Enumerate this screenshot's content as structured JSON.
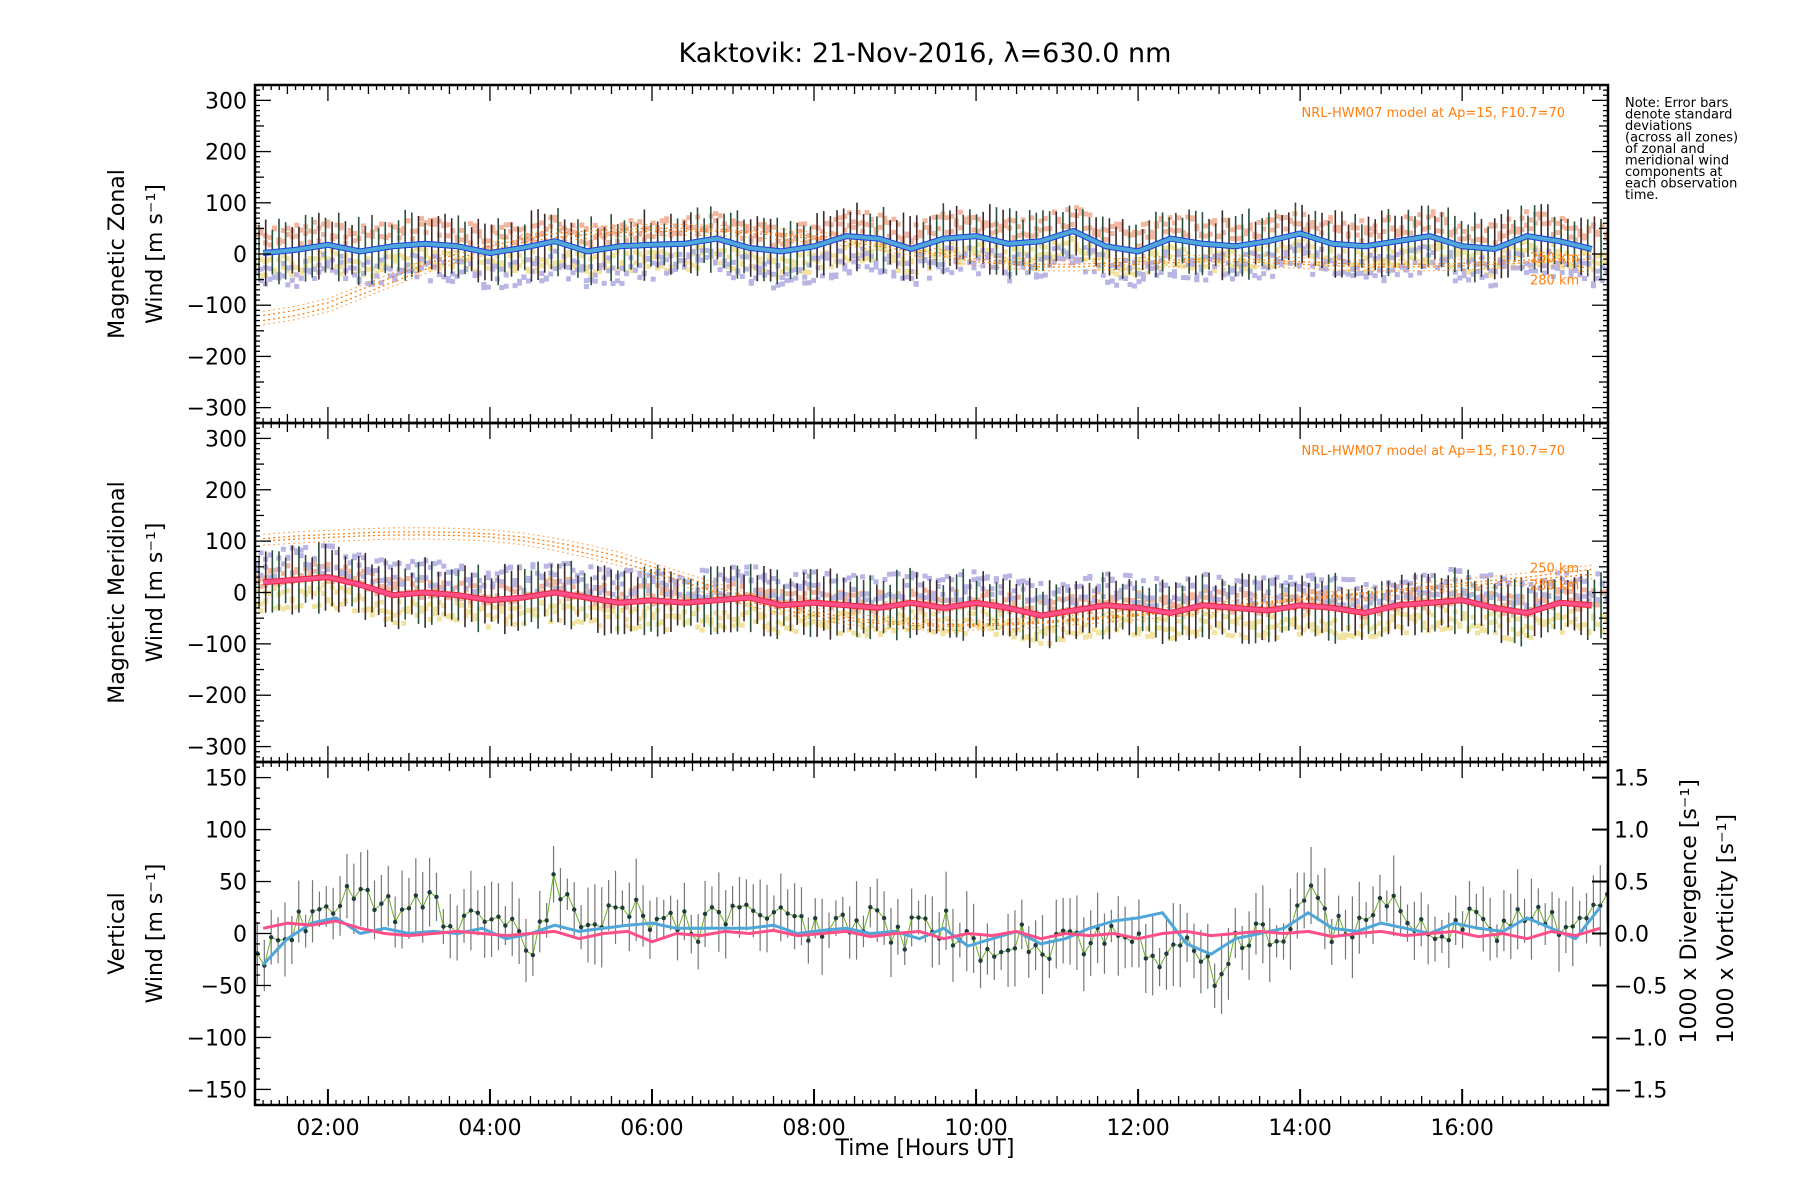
{
  "title": "Kaktovik: 21-Nov-2016, λ=630.0 nm",
  "note": [
    "Note: Error bars",
    "denote standard",
    "deviations",
    "(across all zones)",
    "of zonal and",
    "meridional wind",
    "components at",
    "each observation",
    "time."
  ],
  "colors": {
    "zonal_mean": "#4fa6d9",
    "zonal_dark": "#1f3fd9",
    "meridional_mean": "#ff4f88",
    "meridional_dark": "#e8283a",
    "vertical": "#6ab023",
    "divergence": "#4fa6d9",
    "vorticity": "#ff4f88",
    "model": "#ff7f0e",
    "scatter_lavender": "#b9b5e5",
    "scatter_yellow": "#f3e3a1",
    "scatter_salmon": "#f3b7a1",
    "errorbar": "#333333"
  },
  "chart_data": [
    {
      "type": "line",
      "panel": "zonal",
      "ylabel": [
        "Magnetic Zonal",
        "Wind [m s⁻¹]"
      ],
      "model_label": "NRL-HWM07 model at Ap=15, F10.7=70",
      "model_tags": [
        "250 km",
        "280 km"
      ],
      "xlim": [
        1.1,
        17.8
      ],
      "ylim": [
        -330,
        330
      ],
      "yticks": [
        300,
        200,
        100,
        0,
        -100,
        -200,
        -300
      ],
      "x": [
        1.2,
        1.6,
        2.0,
        2.4,
        2.8,
        3.2,
        3.6,
        4.0,
        4.4,
        4.8,
        5.2,
        5.6,
        6.0,
        6.4,
        6.8,
        7.2,
        7.6,
        8.0,
        8.4,
        8.8,
        9.2,
        9.6,
        10.0,
        10.4,
        10.8,
        11.2,
        11.6,
        12.0,
        12.4,
        12.8,
        13.2,
        13.6,
        14.0,
        14.4,
        14.8,
        15.2,
        15.6,
        16.0,
        16.4,
        16.8,
        17.2,
        17.6
      ],
      "mean": [
        2,
        8,
        18,
        5,
        15,
        20,
        15,
        2,
        12,
        25,
        5,
        15,
        18,
        20,
        30,
        12,
        5,
        15,
        35,
        30,
        10,
        30,
        35,
        20,
        25,
        45,
        15,
        5,
        30,
        20,
        15,
        25,
        40,
        20,
        15,
        25,
        35,
        15,
        10,
        35,
        25,
        10
      ],
      "model": [
        {
          "name": "250 km",
          "values": [
            -120,
            -110,
            -95,
            -70,
            -45,
            -20,
            0,
            15,
            30,
            40,
            45,
            48,
            50,
            50,
            48,
            45,
            40,
            35,
            30,
            20,
            10,
            0,
            -10,
            -15,
            -20,
            -20,
            -18,
            -15,
            -12,
            -10,
            -10,
            -12,
            -15,
            -18,
            -20,
            -20,
            -20,
            -18,
            -15,
            -12,
            -10,
            -10
          ]
        },
        {
          "name": "280 km",
          "values": [
            -130,
            -120,
            -105,
            -80,
            -55,
            -30,
            -8,
            8,
            22,
            32,
            38,
            42,
            44,
            45,
            44,
            41,
            36,
            30,
            24,
            15,
            5,
            -5,
            -15,
            -20,
            -25,
            -25,
            -23,
            -20,
            -17,
            -15,
            -15,
            -17,
            -20,
            -23,
            -25,
            -25,
            -25,
            -23,
            -20,
            -17,
            -15,
            -30
          ]
        }
      ]
    },
    {
      "type": "line",
      "panel": "meridional",
      "ylabel": [
        "Magnetic Meridional",
        "Wind [m s⁻¹]"
      ],
      "model_label": "NRL-HWM07 model at Ap=15, F10.7=70",
      "model_tags": [
        "250 km",
        "280 km"
      ],
      "xlim": [
        1.1,
        17.8
      ],
      "ylim": [
        -330,
        330
      ],
      "yticks": [
        300,
        200,
        100,
        0,
        -100,
        -200,
        -300
      ],
      "x": [
        1.2,
        1.6,
        2.0,
        2.4,
        2.8,
        3.2,
        3.6,
        4.0,
        4.4,
        4.8,
        5.2,
        5.6,
        6.0,
        6.4,
        6.8,
        7.2,
        7.6,
        8.0,
        8.4,
        8.8,
        9.2,
        9.6,
        10.0,
        10.4,
        10.8,
        11.2,
        11.6,
        12.0,
        12.4,
        12.8,
        13.2,
        13.6,
        14.0,
        14.4,
        14.8,
        15.2,
        15.6,
        16.0,
        16.4,
        16.8,
        17.2,
        17.6
      ],
      "mean": [
        20,
        25,
        30,
        15,
        -5,
        0,
        -5,
        -15,
        -10,
        0,
        -10,
        -20,
        -15,
        -20,
        -15,
        -10,
        -25,
        -20,
        -25,
        -30,
        -20,
        -30,
        -20,
        -30,
        -45,
        -35,
        -25,
        -30,
        -40,
        -25,
        -30,
        -35,
        -25,
        -30,
        -40,
        -25,
        -20,
        -15,
        -30,
        -40,
        -20,
        -25
      ],
      "model": [
        {
          "name": "250 km",
          "values": [
            105,
            110,
            113,
            116,
            118,
            118,
            117,
            114,
            108,
            98,
            85,
            70,
            50,
            30,
            10,
            -10,
            -25,
            -38,
            -48,
            -55,
            -60,
            -62,
            -62,
            -60,
            -57,
            -52,
            -47,
            -42,
            -36,
            -30,
            -24,
            -18,
            -12,
            -6,
            0,
            6,
            12,
            18,
            24,
            30,
            38,
            45
          ]
        },
        {
          "name": "280 km",
          "values": [
            100,
            104,
            107,
            110,
            112,
            112,
            111,
            108,
            101,
            90,
            76,
            60,
            40,
            20,
            0,
            -18,
            -33,
            -45,
            -54,
            -60,
            -64,
            -66,
            -65,
            -63,
            -60,
            -55,
            -50,
            -45,
            -39,
            -33,
            -27,
            -21,
            -15,
            -9,
            -3,
            3,
            8,
            13,
            18,
            24,
            30,
            35
          ]
        }
      ]
    },
    {
      "type": "line",
      "panel": "vertical",
      "ylabel": [
        "Vertical",
        "Wind [m s⁻¹]"
      ],
      "y2label": [
        "1000 x Divergence [s⁻¹]",
        "1000 x Vorticity [s⁻¹]"
      ],
      "xlabel": "Time [Hours UT]",
      "xlim": [
        1.1,
        17.8
      ],
      "xticks": [
        2,
        4,
        6,
        8,
        10,
        12,
        14,
        16
      ],
      "xticklabels": [
        "02:00",
        "04:00",
        "06:00",
        "08:00",
        "10:00",
        "12:00",
        "14:00",
        "16:00"
      ],
      "ylim": [
        -165,
        165
      ],
      "yticks": [
        150,
        100,
        50,
        0,
        -50,
        -100,
        -150
      ],
      "y2lim": [
        -1.65,
        1.65
      ],
      "y2ticks": [
        1.5,
        1.0,
        0.5,
        0.0,
        -0.5,
        -1.0,
        -1.5
      ],
      "y2ticklabels": [
        "1.5",
        "1.0",
        "0.5",
        "0.0",
        "−0.5",
        "−1.0",
        "−1.5"
      ],
      "series": [
        {
          "name": "Vertical",
          "x": [
            1.2,
            1.5,
            1.8,
            2.1,
            2.4,
            2.7,
            3.0,
            3.3,
            3.6,
            3.9,
            4.2,
            4.5,
            4.8,
            5.1,
            5.4,
            5.7,
            6.0,
            6.3,
            6.6,
            6.9,
            7.2,
            7.5,
            7.8,
            8.1,
            8.4,
            8.7,
            9.0,
            9.3,
            9.6,
            9.9,
            10.2,
            10.5,
            10.8,
            11.1,
            11.4,
            11.7,
            12.0,
            12.3,
            12.6,
            12.9,
            13.2,
            13.5,
            13.8,
            14.1,
            14.4,
            14.7,
            15.0,
            15.3,
            15.6,
            15.9,
            16.2,
            16.5,
            16.8,
            17.1,
            17.4,
            17.7
          ],
          "values": [
            -20,
            5,
            10,
            25,
            45,
            20,
            30,
            25,
            15,
            20,
            10,
            -15,
            45,
            5,
            10,
            25,
            15,
            10,
            5,
            20,
            15,
            25,
            5,
            10,
            5,
            15,
            -5,
            5,
            10,
            -10,
            -15,
            0,
            -20,
            5,
            -10,
            0,
            -5,
            -30,
            10,
            -40,
            -10,
            5,
            -5,
            35,
            5,
            10,
            35,
            10,
            5,
            0,
            15,
            5,
            20,
            10,
            5,
            25
          ]
        },
        {
          "name": "1000 x Divergence",
          "x": [
            1.2,
            1.5,
            1.8,
            2.1,
            2.4,
            2.7,
            3.0,
            3.3,
            3.6,
            3.9,
            4.2,
            4.5,
            4.8,
            5.1,
            5.4,
            5.7,
            6.0,
            6.3,
            6.6,
            6.9,
            7.2,
            7.5,
            7.8,
            8.1,
            8.4,
            8.7,
            9.0,
            9.3,
            9.6,
            9.9,
            10.2,
            10.5,
            10.8,
            11.1,
            11.4,
            11.7,
            12.0,
            12.3,
            12.6,
            12.9,
            13.2,
            13.5,
            13.8,
            14.1,
            14.4,
            14.7,
            15.0,
            15.3,
            15.6,
            15.9,
            16.2,
            16.5,
            16.8,
            17.1,
            17.4,
            17.7
          ],
          "values": [
            -0.3,
            -0.05,
            0.1,
            0.15,
            0.0,
            0.05,
            0.0,
            0.02,
            0.0,
            0.05,
            -0.05,
            0.0,
            0.08,
            0.02,
            0.05,
            0.08,
            0.1,
            0.05,
            0.05,
            0.05,
            0.05,
            0.08,
            0.0,
            0.03,
            0.05,
            0.0,
            0.02,
            -0.05,
            0.05,
            -0.12,
            -0.05,
            0.02,
            -0.1,
            -0.05,
            0.05,
            0.12,
            0.15,
            0.2,
            -0.1,
            -0.2,
            -0.05,
            0.0,
            0.05,
            0.2,
            0.05,
            0.02,
            0.1,
            0.05,
            0.0,
            0.1,
            0.05,
            0.02,
            0.15,
            0.05,
            -0.05,
            0.25
          ]
        },
        {
          "name": "1000 x Vorticity",
          "x": [
            1.2,
            1.5,
            1.8,
            2.1,
            2.4,
            2.7,
            3.0,
            3.3,
            3.6,
            3.9,
            4.2,
            4.5,
            4.8,
            5.1,
            5.4,
            5.7,
            6.0,
            6.3,
            6.6,
            6.9,
            7.2,
            7.5,
            7.8,
            8.1,
            8.4,
            8.7,
            9.0,
            9.3,
            9.6,
            9.9,
            10.2,
            10.5,
            10.8,
            11.1,
            11.4,
            11.7,
            12.0,
            12.3,
            12.6,
            12.9,
            13.2,
            13.5,
            13.8,
            14.1,
            14.4,
            14.7,
            15.0,
            15.3,
            15.6,
            15.9,
            16.2,
            16.5,
            16.8,
            17.1,
            17.4,
            17.7
          ],
          "values": [
            0.05,
            0.1,
            0.08,
            0.12,
            0.05,
            0.0,
            -0.02,
            0.0,
            0.02,
            0.0,
            -0.02,
            0.0,
            0.02,
            -0.05,
            0.0,
            0.02,
            -0.08,
            0.0,
            -0.02,
            0.02,
            0.0,
            0.03,
            -0.02,
            0.0,
            0.02,
            -0.03,
            0.0,
            0.02,
            -0.05,
            0.0,
            -0.02,
            0.02,
            -0.05,
            0.0,
            -0.02,
            0.0,
            -0.05,
            0.0,
            0.02,
            -0.02,
            0.0,
            0.02,
            0.0,
            0.02,
            -0.03,
            0.0,
            0.02,
            -0.02,
            0.0,
            0.02,
            -0.03,
            0.0,
            -0.05,
            0.02,
            -0.02,
            0.05
          ]
        }
      ]
    }
  ]
}
